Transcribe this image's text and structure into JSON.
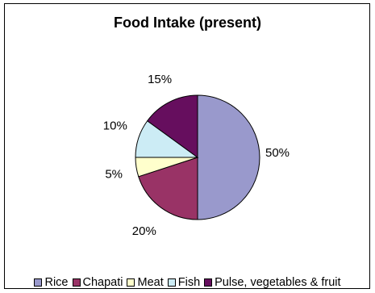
{
  "chart_data": {
    "type": "pie",
    "title": "Food Intake (present)",
    "categories": [
      "Rice",
      "Chapati",
      "Meat",
      "Fish",
      "Pulse, vegetables & fruit"
    ],
    "values": [
      50,
      20,
      5,
      10,
      15
    ],
    "labels": [
      "50%",
      "20%",
      "5%",
      "10%",
      "15%"
    ],
    "colors": [
      "#9999cc",
      "#993366",
      "#ffffcc",
      "#ccecf5",
      "#660e5e"
    ],
    "legend_position": "bottom",
    "start_angle": "top",
    "direction": "clockwise"
  }
}
